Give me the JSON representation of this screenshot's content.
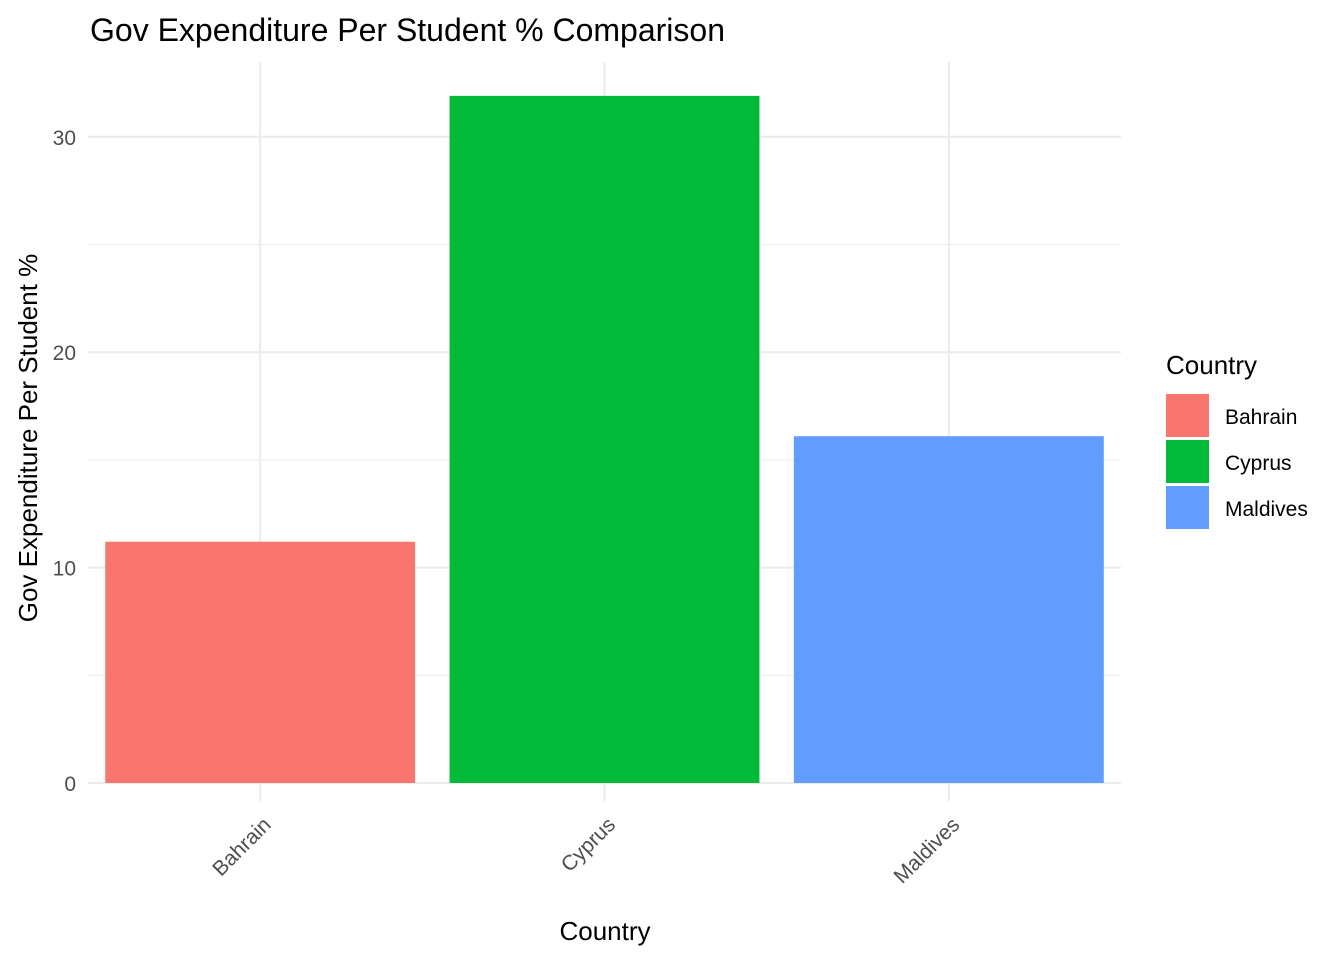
{
  "chart_data": {
    "type": "bar",
    "title": "Gov Expenditure Per Student % Comparison",
    "xlabel": "Country",
    "ylabel": "Gov Expenditure Per Student %",
    "categories": [
      "Bahrain",
      "Cyprus",
      "Maldives"
    ],
    "values": [
      11.2,
      31.9,
      16.1
    ],
    "colors": [
      "#F8766D",
      "#00BA38",
      "#619CFF"
    ],
    "ylim": [
      0,
      33.5
    ],
    "yticks": [
      0,
      10,
      20,
      30
    ],
    "yminor": [
      5,
      15,
      25
    ],
    "grid": true,
    "legend": {
      "title": "Country",
      "position": "right",
      "entries": [
        "Bahrain",
        "Cyprus",
        "Maldives"
      ]
    }
  }
}
